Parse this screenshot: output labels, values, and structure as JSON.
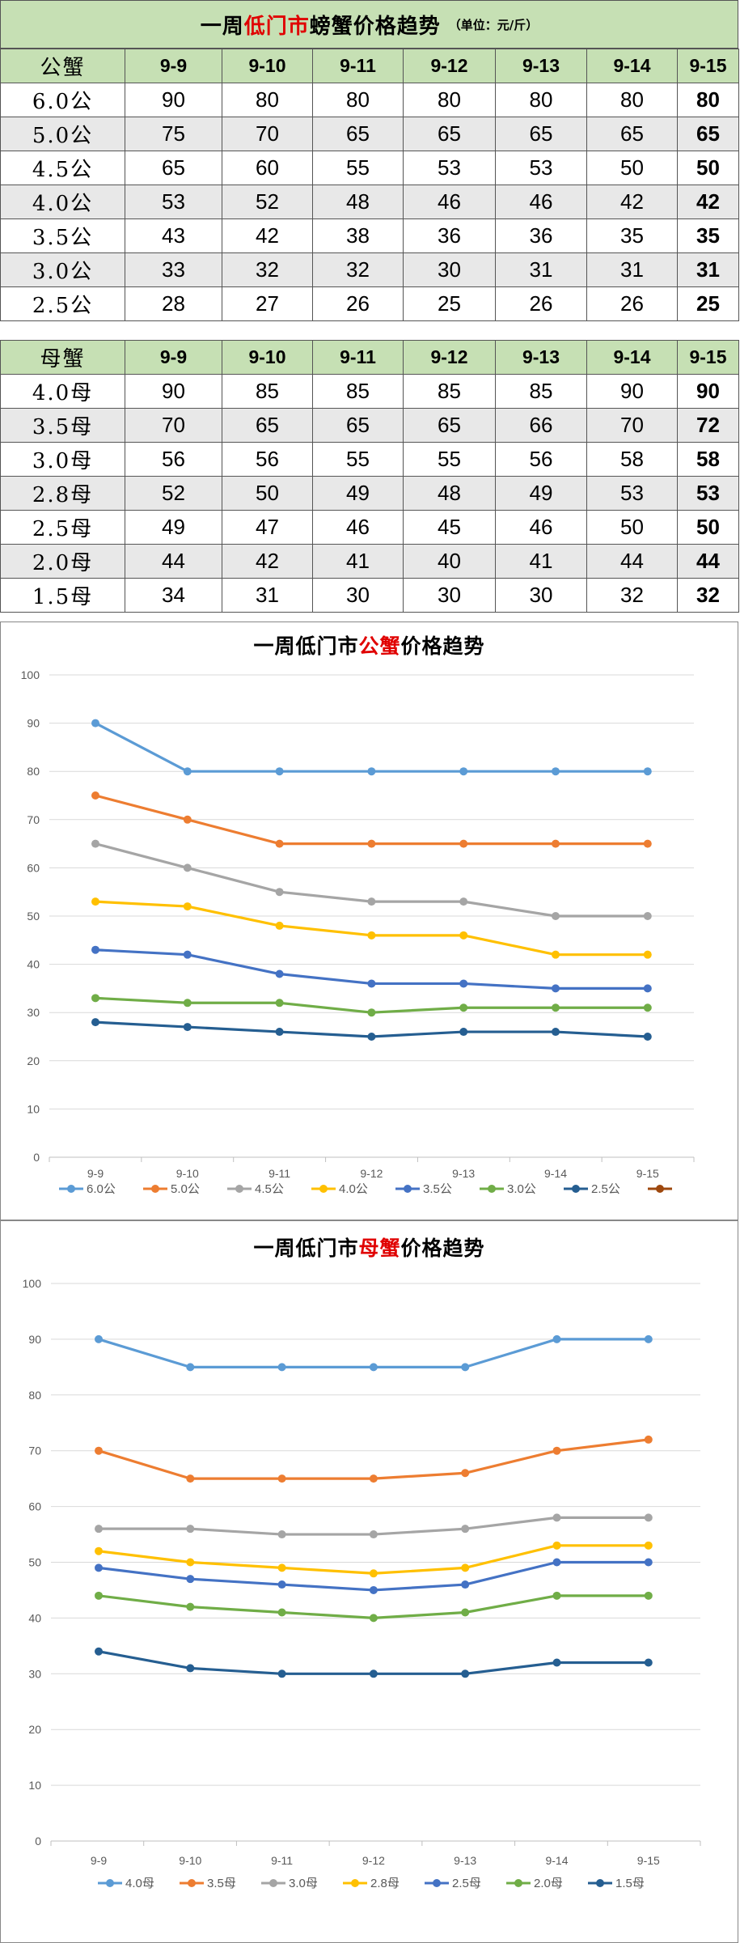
{
  "header": {
    "title_pre": "一周",
    "title_red": "低门市",
    "title_post": "螃蟹价格趋势",
    "unit": "（单位：元/斤）"
  },
  "dates": [
    "9-9",
    "9-10",
    "9-11",
    "9-12",
    "9-13",
    "9-14",
    "9-15"
  ],
  "male_table": {
    "header_label": "公蟹",
    "rows": [
      {
        "label": "6.0公",
        "values": [
          90,
          80,
          80,
          80,
          80,
          80,
          80
        ]
      },
      {
        "label": "5.0公",
        "values": [
          75,
          70,
          65,
          65,
          65,
          65,
          65
        ]
      },
      {
        "label": "4.5公",
        "values": [
          65,
          60,
          55,
          53,
          53,
          50,
          50
        ]
      },
      {
        "label": "4.0公",
        "values": [
          53,
          52,
          48,
          46,
          46,
          42,
          42
        ]
      },
      {
        "label": "3.5公",
        "values": [
          43,
          42,
          38,
          36,
          36,
          35,
          35
        ]
      },
      {
        "label": "3.0公",
        "values": [
          33,
          32,
          32,
          30,
          31,
          31,
          31
        ]
      },
      {
        "label": "2.5公",
        "values": [
          28,
          27,
          26,
          25,
          26,
          26,
          25
        ]
      }
    ]
  },
  "female_table": {
    "header_label": "母蟹",
    "rows": [
      {
        "label": "4.0母",
        "values": [
          90,
          85,
          85,
          85,
          85,
          90,
          90
        ]
      },
      {
        "label": "3.5母",
        "values": [
          70,
          65,
          65,
          65,
          66,
          70,
          72
        ]
      },
      {
        "label": "3.0母",
        "values": [
          56,
          56,
          55,
          55,
          56,
          58,
          58
        ]
      },
      {
        "label": "2.8母",
        "values": [
          52,
          50,
          49,
          48,
          49,
          53,
          53
        ]
      },
      {
        "label": "2.5母",
        "values": [
          49,
          47,
          46,
          45,
          46,
          50,
          50
        ]
      },
      {
        "label": "2.0母",
        "values": [
          44,
          42,
          41,
          40,
          41,
          44,
          44
        ]
      },
      {
        "label": "1.5母",
        "values": [
          34,
          31,
          30,
          30,
          30,
          32,
          32
        ]
      }
    ]
  },
  "chart_data": [
    {
      "type": "line",
      "title_pre": "一周低门市",
      "title_red": "公蟹",
      "title_post": "价格趋势",
      "categories": [
        "9-9",
        "9-10",
        "9-11",
        "9-12",
        "9-13",
        "9-14",
        "9-15"
      ],
      "ylim": [
        0,
        100
      ],
      "yticks": [
        0,
        10,
        20,
        30,
        40,
        50,
        60,
        70,
        80,
        90,
        100
      ],
      "grid": true,
      "legend": "bottom",
      "extra_legend_color": "#9e480e",
      "series": [
        {
          "name": "6.0公",
          "color": "#5b9bd5",
          "values": [
            90,
            80,
            80,
            80,
            80,
            80,
            80
          ]
        },
        {
          "name": "5.0公",
          "color": "#ed7d31",
          "values": [
            75,
            70,
            65,
            65,
            65,
            65,
            65
          ]
        },
        {
          "name": "4.5公",
          "color": "#a5a5a5",
          "values": [
            65,
            60,
            55,
            53,
            53,
            50,
            50
          ]
        },
        {
          "name": "4.0公",
          "color": "#ffc000",
          "values": [
            53,
            52,
            48,
            46,
            46,
            42,
            42
          ]
        },
        {
          "name": "3.5公",
          "color": "#4472c4",
          "values": [
            43,
            42,
            38,
            36,
            36,
            35,
            35
          ]
        },
        {
          "name": "3.0公",
          "color": "#70ad47",
          "values": [
            33,
            32,
            32,
            30,
            31,
            31,
            31
          ]
        },
        {
          "name": "2.5公",
          "color": "#255e91",
          "values": [
            28,
            27,
            26,
            25,
            26,
            26,
            25
          ]
        }
      ]
    },
    {
      "type": "line",
      "title_pre": "一周低门市",
      "title_red": "母蟹",
      "title_post": "价格趋势",
      "categories": [
        "9-9",
        "9-10",
        "9-11",
        "9-12",
        "9-13",
        "9-14",
        "9-15"
      ],
      "ylim": [
        0,
        100
      ],
      "yticks": [
        0,
        10,
        20,
        30,
        40,
        50,
        60,
        70,
        80,
        90,
        100
      ],
      "grid": true,
      "legend": "bottom",
      "series": [
        {
          "name": "4.0母",
          "color": "#5b9bd5",
          "values": [
            90,
            85,
            85,
            85,
            85,
            90,
            90
          ]
        },
        {
          "name": "3.5母",
          "color": "#ed7d31",
          "values": [
            70,
            65,
            65,
            65,
            66,
            70,
            72
          ]
        },
        {
          "name": "3.0母",
          "color": "#a5a5a5",
          "values": [
            56,
            56,
            55,
            55,
            56,
            58,
            58
          ]
        },
        {
          "name": "2.8母",
          "color": "#ffc000",
          "values": [
            52,
            50,
            49,
            48,
            49,
            53,
            53
          ]
        },
        {
          "name": "2.5母",
          "color": "#4472c4",
          "values": [
            49,
            47,
            46,
            45,
            46,
            50,
            50
          ]
        },
        {
          "name": "2.0母",
          "color": "#70ad47",
          "values": [
            44,
            42,
            41,
            40,
            41,
            44,
            44
          ]
        },
        {
          "name": "1.5母",
          "color": "#255e91",
          "values": [
            34,
            31,
            30,
            30,
            30,
            32,
            32
          ]
        }
      ]
    }
  ]
}
